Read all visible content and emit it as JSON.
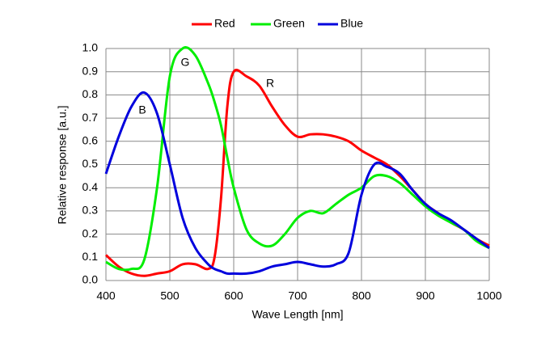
{
  "chart_data": {
    "type": "line",
    "x_label": "Wave Length [nm]",
    "y_label": "Relative response [a.u.]",
    "x": [
      400,
      420,
      440,
      460,
      480,
      500,
      520,
      540,
      560,
      570,
      580,
      590,
      600,
      620,
      640,
      660,
      680,
      700,
      720,
      740,
      760,
      780,
      800,
      820,
      840,
      860,
      880,
      900,
      920,
      940,
      960,
      980,
      1000
    ],
    "series": [
      {
        "name": "Red",
        "color": "#ff0000",
        "values": [
          0.11,
          0.06,
          0.03,
          0.02,
          0.03,
          0.04,
          0.07,
          0.07,
          0.05,
          0.1,
          0.35,
          0.75,
          0.9,
          0.88,
          0.84,
          0.75,
          0.67,
          0.62,
          0.63,
          0.63,
          0.62,
          0.6,
          0.56,
          0.53,
          0.5,
          0.45,
          0.39,
          0.33,
          0.29,
          0.25,
          0.22,
          0.18,
          0.15
        ]
      },
      {
        "name": "Green",
        "color": "#00ee00",
        "values": [
          0.08,
          0.05,
          0.05,
          0.09,
          0.4,
          0.88,
          1.0,
          0.97,
          0.85,
          0.77,
          0.67,
          0.53,
          0.4,
          0.22,
          0.16,
          0.15,
          0.2,
          0.27,
          0.3,
          0.29,
          0.33,
          0.37,
          0.4,
          0.45,
          0.45,
          0.42,
          0.37,
          0.32,
          0.28,
          0.25,
          0.22,
          0.17,
          0.14
        ]
      },
      {
        "name": "Blue",
        "color": "#0000dd",
        "values": [
          0.46,
          0.62,
          0.75,
          0.81,
          0.72,
          0.5,
          0.27,
          0.14,
          0.07,
          0.05,
          0.04,
          0.03,
          0.03,
          0.03,
          0.04,
          0.06,
          0.07,
          0.08,
          0.07,
          0.06,
          0.07,
          0.12,
          0.37,
          0.5,
          0.49,
          0.46,
          0.39,
          0.33,
          0.29,
          0.26,
          0.22,
          0.18,
          0.14
        ]
      }
    ],
    "annotations": [
      "B",
      "G",
      "R"
    ],
    "xlim": [
      400,
      1000
    ],
    "xticks": [
      400,
      500,
      600,
      700,
      800,
      900,
      1000
    ],
    "ylim": [
      0,
      1
    ],
    "yticks": [
      {
        "value": 0,
        "label": "0.0"
      },
      0.1,
      0.2,
      0.3,
      0.4,
      0.5,
      0.6,
      0.7,
      0.8,
      0.9,
      {
        "value": 1,
        "label": "1.0"
      }
    ],
    "grid": true,
    "legend": "top"
  }
}
